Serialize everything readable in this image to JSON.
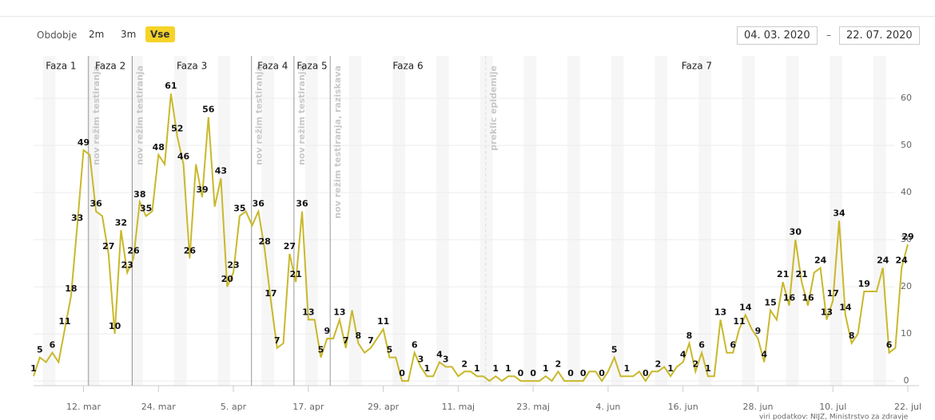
{
  "controls": {
    "period_label": "Obdobje",
    "buttons": [
      "2m",
      "3m",
      "Vse"
    ],
    "active": 2,
    "date_from": "04. 03. 2020",
    "separator": "–",
    "date_to": "22. 07. 2020"
  },
  "chart_data": {
    "type": "line",
    "color": "#c9b82c",
    "categories": [
      null,
      null,
      null,
      null,
      null,
      null,
      null,
      null,
      "12. mar",
      null,
      null,
      null,
      null,
      null,
      null,
      null,
      null,
      null,
      null,
      null,
      "24. mar",
      null,
      null,
      null,
      null,
      null,
      null,
      null,
      null,
      null,
      null,
      null,
      "5. apr",
      null,
      null,
      null,
      null,
      null,
      null,
      null,
      null,
      null,
      null,
      null,
      "17. apr",
      null,
      null,
      null,
      null,
      null,
      null,
      null,
      null,
      null,
      null,
      null,
      "29. apr",
      null,
      null,
      null,
      null,
      null,
      null,
      null,
      null,
      null,
      null,
      null,
      "11. maj",
      null,
      null,
      null,
      null,
      null,
      null,
      null,
      null,
      null,
      null,
      null,
      "23. maj",
      null,
      null,
      null,
      null,
      null,
      null,
      null,
      null,
      null,
      null,
      null,
      "4. jun",
      null,
      null,
      null,
      null,
      null,
      null,
      null,
      null,
      null,
      null,
      null,
      "16. jun",
      null,
      null,
      null,
      null,
      null,
      null,
      null,
      null,
      null,
      null,
      null,
      "28. jun",
      null,
      null,
      null,
      null,
      null,
      null,
      null,
      null,
      null,
      null,
      null,
      "10. jul",
      null,
      null,
      null,
      null,
      null,
      null,
      null,
      null,
      null,
      null,
      null,
      "22. jul"
    ],
    "values": [
      1,
      5,
      4,
      6,
      4,
      11,
      18,
      33,
      49,
      48,
      36,
      35,
      27,
      10,
      32,
      23,
      26,
      38,
      35,
      36,
      48,
      46,
      61,
      52,
      46,
      26,
      46,
      39,
      56,
      37,
      43,
      20,
      23,
      35,
      36,
      33,
      36,
      28,
      17,
      7,
      8,
      27,
      21,
      36,
      13,
      13,
      5,
      9,
      9,
      13,
      7,
      15,
      8,
      6,
      7,
      9,
      11,
      5,
      5,
      0,
      0,
      6,
      3,
      1,
      1,
      4,
      3,
      3,
      1,
      2,
      2,
      1,
      1,
      0,
      1,
      0,
      1,
      1,
      0,
      0,
      0,
      0,
      1,
      0,
      2,
      0,
      0,
      0,
      0,
      2,
      2,
      0,
      2,
      5,
      1,
      1,
      1,
      2,
      0,
      2,
      2,
      3,
      1,
      3,
      4,
      8,
      2,
      6,
      1,
      1,
      13,
      6,
      6,
      11,
      14,
      11,
      9,
      4,
      15,
      13,
      21,
      16,
      30,
      21,
      16,
      23,
      24,
      13,
      17,
      34,
      14,
      8,
      10,
      19,
      19,
      19,
      24,
      6,
      7,
      24,
      29
    ],
    "value_labels": [
      "1",
      "5",
      null,
      "6",
      null,
      "11",
      "18",
      "33",
      "49",
      null,
      "36",
      null,
      "27",
      "10",
      "32",
      "23",
      "26",
      "38",
      "35",
      null,
      "48",
      null,
      "61",
      "52",
      "46",
      "26",
      null,
      "39",
      "56",
      null,
      "43",
      "20",
      "23",
      "35",
      null,
      null,
      "36",
      "28",
      "17",
      "7",
      null,
      "27",
      "21",
      "36",
      "13",
      null,
      "5",
      "9",
      null,
      "13",
      "7",
      null,
      "8",
      null,
      "7",
      null,
      "11",
      "5",
      null,
      "0",
      null,
      "6",
      "3",
      "1",
      null,
      "4",
      "3",
      null,
      null,
      "2",
      null,
      "1",
      null,
      null,
      "1",
      null,
      "1",
      null,
      "0",
      null,
      "0",
      null,
      "1",
      null,
      "2",
      null,
      "0",
      null,
      "0",
      null,
      null,
      "0",
      null,
      "5",
      null,
      "1",
      null,
      null,
      "0",
      null,
      "2",
      null,
      "1",
      null,
      "4",
      "8",
      "2",
      "6",
      "1",
      null,
      "13",
      null,
      "6",
      "11",
      "14",
      null,
      "9",
      "4",
      "15",
      null,
      "21",
      "16",
      "30",
      "21",
      "16",
      null,
      "24",
      "13",
      "17",
      "34",
      "14",
      "8",
      null,
      "19",
      null,
      null,
      "24",
      "6",
      null,
      "24",
      "29"
    ],
    "ylim": [
      -1,
      69
    ],
    "yticks": [
      0,
      10,
      20,
      30,
      40,
      50,
      60
    ],
    "grid": true,
    "phases": [
      "Faza 1",
      "Faza 2",
      "Faza 3",
      "Faza 4",
      "Faza 5",
      "Faza 6",
      "Faza 7"
    ],
    "events": [
      {
        "x": 8.8,
        "label": "nov režim testiranja"
      },
      {
        "x": 15.8,
        "label": "nov režim testiranja"
      },
      {
        "x": 34.9,
        "label": "nov režim testiranja"
      },
      {
        "x": 41.7,
        "label": "nov režim testiranja"
      },
      {
        "x": 47.5,
        "label": "nov režim testiranja, raziskava"
      },
      {
        "x": 72.4,
        "label": "preklic epidemije"
      }
    ],
    "source": "viri podatkov: NIJZ, Ministrstvo za zdravje"
  }
}
